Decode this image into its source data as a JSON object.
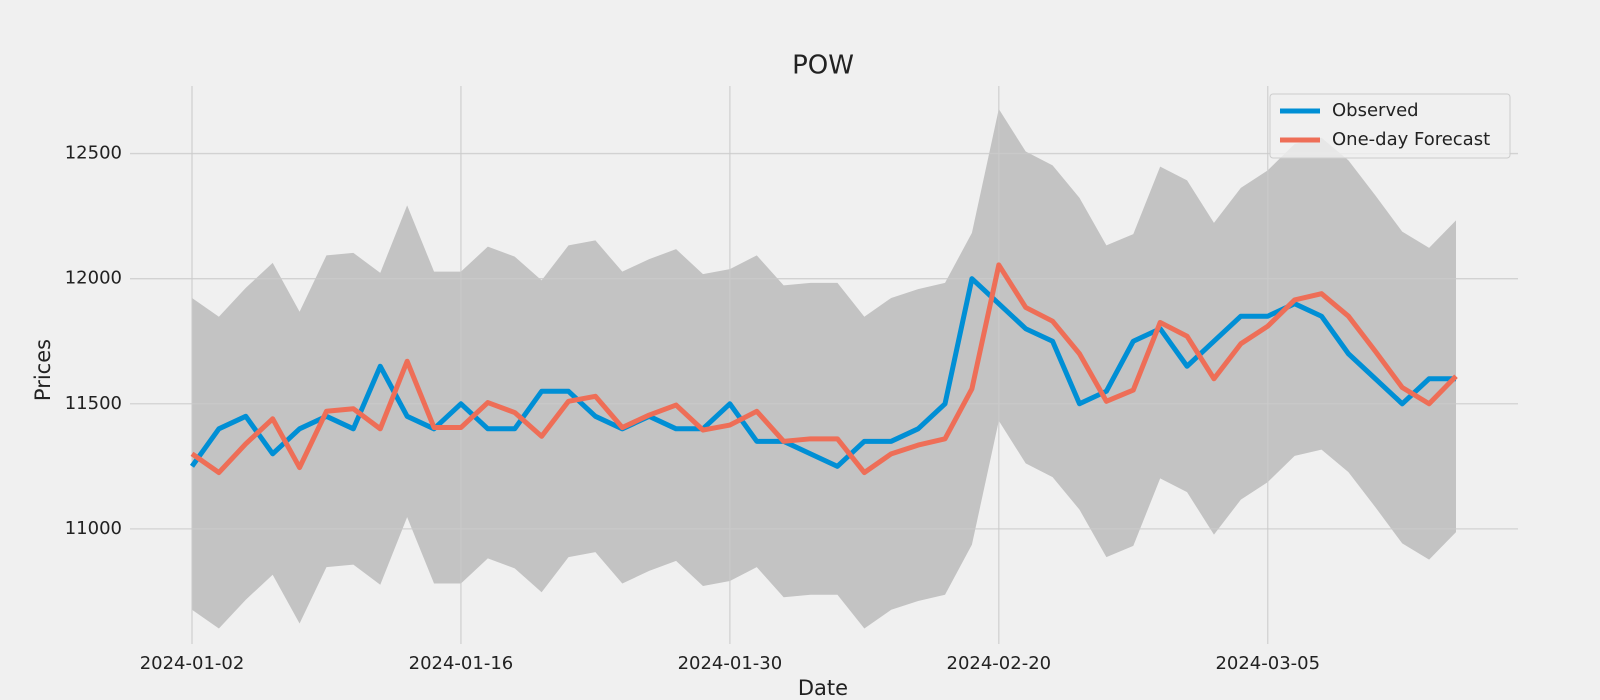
{
  "chart_data": {
    "type": "line",
    "title": "POW",
    "xlabel": "Date",
    "ylabel": "Prices",
    "categories": [
      "2024-01-02",
      null,
      null,
      null,
      null,
      null,
      null,
      null,
      null,
      null,
      "2024-01-16",
      null,
      null,
      null,
      null,
      null,
      null,
      null,
      null,
      null,
      "2024-01-30",
      null,
      null,
      null,
      null,
      null,
      null,
      null,
      null,
      null,
      "2024-02-20",
      null,
      null,
      null,
      null,
      null,
      null,
      null,
      null,
      null,
      "2024-03-05",
      null,
      null,
      null,
      null,
      null,
      null,
      null
    ],
    "series": [
      {
        "name": "Observed",
        "color": "#008fd5",
        "values": [
          11250,
          11400,
          11450,
          11300,
          11400,
          11450,
          11400,
          11650,
          11450,
          11400,
          11500,
          11400,
          11400,
          11550,
          11550,
          11450,
          11400,
          11450,
          11400,
          11400,
          11500,
          11350,
          11350,
          11300,
          11250,
          11350,
          11350,
          11400,
          11500,
          12000,
          11900,
          11800,
          11750,
          11500,
          11550,
          11750,
          11800,
          11650,
          11750,
          11850,
          11850,
          11900,
          11850,
          11700,
          11600,
          11500,
          11600,
          11600
        ]
      },
      {
        "name": "One-day Forecast",
        "color": "#ee6e57",
        "values": [
          11300,
          11225,
          11340,
          11440,
          11245,
          11470,
          11480,
          11400,
          11670,
          11405,
          11405,
          11505,
          11465,
          11370,
          11510,
          11530,
          11405,
          11455,
          11495,
          11395,
          11415,
          11470,
          11350,
          11360,
          11360,
          11225,
          11300,
          11335,
          11360,
          11560,
          12055,
          11885,
          11830,
          11700,
          11510,
          11555,
          11825,
          11770,
          11600,
          11740,
          11810,
          11915,
          11940,
          11850,
          11710,
          11565,
          11500,
          11610
        ]
      }
    ],
    "band": {
      "color": "#c0c0c0",
      "upper": [
        11923,
        11848,
        11963,
        12063,
        11868,
        12093,
        12103,
        12023,
        12293,
        12028,
        12028,
        12128,
        12088,
        11993,
        12133,
        12153,
        12028,
        12078,
        12118,
        12018,
        12038,
        12093,
        11973,
        11983,
        11983,
        11848,
        11923,
        11958,
        11983,
        12183,
        12678,
        12508,
        12453,
        12323,
        12133,
        12178,
        12448,
        12393,
        12223,
        12363,
        12433,
        12538,
        12563,
        12473,
        12333,
        12188,
        12123,
        12233
      ],
      "lower": [
        10677,
        10602,
        10717,
        10817,
        10622,
        10847,
        10857,
        10777,
        11047,
        10782,
        10782,
        10882,
        10842,
        10747,
        10887,
        10907,
        10782,
        10832,
        10872,
        10772,
        10792,
        10847,
        10727,
        10737,
        10737,
        10602,
        10677,
        10712,
        10737,
        10937,
        11432,
        11262,
        11207,
        11077,
        10887,
        10932,
        11202,
        11147,
        10977,
        11117,
        11187,
        11292,
        11317,
        11227,
        11087,
        10942,
        10877,
        10987
      ]
    },
    "ylim": [
      10540,
      12770
    ],
    "yticks": [
      11000,
      11500,
      12000,
      12500
    ],
    "grid": true,
    "legend": "upper right"
  }
}
